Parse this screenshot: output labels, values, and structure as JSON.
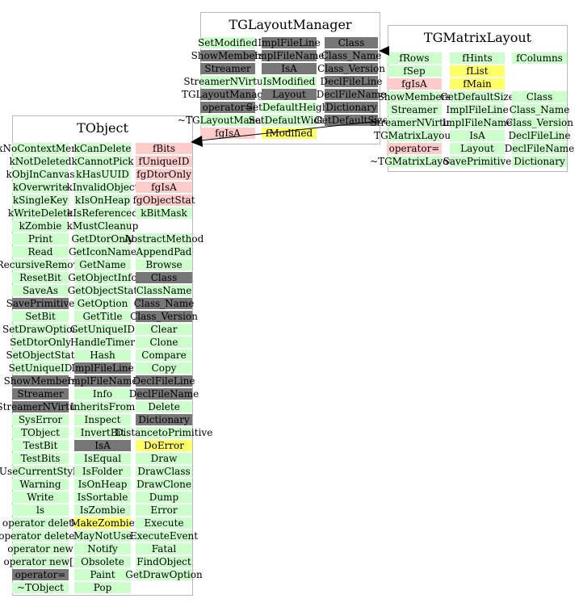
{
  "colors": {
    "green": "#ccffcc",
    "dark": "#777777",
    "pink": "#ffcccc",
    "yellow": "#ffff66",
    "border": "#b8b8b8"
  },
  "classes": [
    {
      "id": "tobject",
      "title": "TObject",
      "columns": [
        [
          [
            "kNoContextMenu",
            "green"
          ],
          [
            "kNotDeleted",
            "green"
          ],
          [
            "kObjInCanvas",
            "green"
          ],
          [
            "kOverwrite",
            "green"
          ],
          [
            "kSingleKey",
            "green"
          ],
          [
            "kWriteDelete",
            "green"
          ],
          [
            "kZombie",
            "green"
          ],
          [
            "Print",
            "green"
          ],
          [
            "Read",
            "green"
          ],
          [
            "RecursiveRemove",
            "green"
          ],
          [
            "ResetBit",
            "green"
          ],
          [
            "SaveAs",
            "green"
          ],
          [
            "SavePrimitive",
            "dark"
          ],
          [
            "SetBit",
            "green"
          ],
          [
            "SetDrawOption",
            "green"
          ],
          [
            "SetDtorOnly",
            "green"
          ],
          [
            "SetObjectStat",
            "green"
          ],
          [
            "SetUniqueID",
            "green"
          ],
          [
            "ShowMembers",
            "dark"
          ],
          [
            "Streamer",
            "dark"
          ],
          [
            "StreamerNVirtual",
            "dark"
          ],
          [
            "SysError",
            "green"
          ],
          [
            "TObject",
            "green"
          ],
          [
            "TestBit",
            "green"
          ],
          [
            "TestBits",
            "green"
          ],
          [
            "UseCurrentStyle",
            "green"
          ],
          [
            "Warning",
            "green"
          ],
          [
            "Write",
            "green"
          ],
          [
            "ls",
            "green"
          ],
          [
            "operator delete",
            "green"
          ],
          [
            "operator delete[]",
            "green"
          ],
          [
            "operator new",
            "green"
          ],
          [
            "operator new[]",
            "green"
          ],
          [
            "operator=",
            "dark"
          ],
          [
            "~TObject",
            "green"
          ]
        ],
        [
          [
            "kCanDelete",
            "green"
          ],
          [
            "kCannotPick",
            "green"
          ],
          [
            "kHasUUID",
            "green"
          ],
          [
            "kInvalidObject",
            "green"
          ],
          [
            "kIsOnHeap",
            "green"
          ],
          [
            "kIsReferenced",
            "green"
          ],
          [
            "kMustCleanup",
            "green"
          ],
          [
            "GetDtorOnly",
            "green"
          ],
          [
            "GetIconName",
            "green"
          ],
          [
            "GetName",
            "green"
          ],
          [
            "GetObjectInfo",
            "green"
          ],
          [
            "GetObjectStat",
            "green"
          ],
          [
            "GetOption",
            "green"
          ],
          [
            "GetTitle",
            "green"
          ],
          [
            "GetUniqueID",
            "green"
          ],
          [
            "HandleTimer",
            "green"
          ],
          [
            "Hash",
            "green"
          ],
          [
            "ImplFileLine",
            "dark"
          ],
          [
            "ImplFileName",
            "dark"
          ],
          [
            "Info",
            "green"
          ],
          [
            "InheritsFrom",
            "green"
          ],
          [
            "Inspect",
            "green"
          ],
          [
            "InvertBit",
            "green"
          ],
          [
            "IsA",
            "dark"
          ],
          [
            "IsEqual",
            "green"
          ],
          [
            "IsFolder",
            "green"
          ],
          [
            "IsOnHeap",
            "green"
          ],
          [
            "IsSortable",
            "green"
          ],
          [
            "IsZombie",
            "green"
          ],
          [
            "MakeZombie",
            "yellow"
          ],
          [
            "MayNotUse",
            "green"
          ],
          [
            "Notify",
            "green"
          ],
          [
            "Obsolete",
            "green"
          ],
          [
            "Paint",
            "green"
          ],
          [
            "Pop",
            "green"
          ]
        ],
        [
          [
            "fBits",
            "pink"
          ],
          [
            "fUniqueID",
            "pink"
          ],
          [
            "fgDtorOnly",
            "pink"
          ],
          [
            "fgIsA",
            "pink"
          ],
          [
            "fgObjectStat",
            "pink"
          ],
          [
            "kBitMask",
            "green"
          ],
          [
            "",
            "none"
          ],
          [
            "AbstractMethod",
            "green"
          ],
          [
            "AppendPad",
            "green"
          ],
          [
            "Browse",
            "green"
          ],
          [
            "Class",
            "dark"
          ],
          [
            "ClassName",
            "green"
          ],
          [
            "Class_Name",
            "dark"
          ],
          [
            "Class_Version",
            "dark"
          ],
          [
            "Clear",
            "green"
          ],
          [
            "Clone",
            "green"
          ],
          [
            "Compare",
            "green"
          ],
          [
            "Copy",
            "green"
          ],
          [
            "DeclFileLine",
            "dark"
          ],
          [
            "DeclFileName",
            "dark"
          ],
          [
            "Delete",
            "green"
          ],
          [
            "Dictionary",
            "dark"
          ],
          [
            "DistancetoPrimitive",
            "green"
          ],
          [
            "DoError",
            "yellow"
          ],
          [
            "Draw",
            "green"
          ],
          [
            "DrawClass",
            "green"
          ],
          [
            "DrawClone",
            "green"
          ],
          [
            "Dump",
            "green"
          ],
          [
            "Error",
            "green"
          ],
          [
            "Execute",
            "green"
          ],
          [
            "ExecuteEvent",
            "green"
          ],
          [
            "Fatal",
            "green"
          ],
          [
            "FindObject",
            "green"
          ],
          [
            "GetDrawOption",
            "green"
          ]
        ]
      ]
    },
    {
      "id": "tglayoutmanager",
      "title": "TGLayoutManager",
      "columns": [
        [
          [
            "SetModified",
            "green"
          ],
          [
            "ShowMembers",
            "dark"
          ],
          [
            "Streamer",
            "dark"
          ],
          [
            "StreamerNVirtual",
            "green"
          ],
          [
            "TGLayoutManager",
            "dark"
          ],
          [
            "operator=",
            "dark"
          ],
          [
            "~TGLayoutManager",
            "green"
          ],
          [
            "fgIsA",
            "pink"
          ]
        ],
        [
          [
            "ImplFileLine",
            "dark"
          ],
          [
            "ImplFileName",
            "dark"
          ],
          [
            "IsA",
            "dark"
          ],
          [
            "IsModified",
            "green"
          ],
          [
            "Layout",
            "dark"
          ],
          [
            "SetDefaultHeight",
            "green"
          ],
          [
            "SetDefaultWidth",
            "green"
          ],
          [
            "fModified",
            "yellow"
          ]
        ],
        [
          [
            "Class",
            "dark"
          ],
          [
            "Class_Name",
            "dark"
          ],
          [
            "Class_Version",
            "dark"
          ],
          [
            "DeclFileLine",
            "dark"
          ],
          [
            "DeclFileName",
            "dark"
          ],
          [
            "Dictionary",
            "dark"
          ],
          [
            "GetDefaultSize",
            "dark"
          ]
        ]
      ]
    },
    {
      "id": "tgmatrixlayout",
      "title": "TGMatrixLayout",
      "columns": [
        [
          [
            "fRows",
            "green"
          ],
          [
            "fSep",
            "green"
          ],
          [
            "fgIsA",
            "pink"
          ],
          [
            "ShowMembers",
            "green"
          ],
          [
            "Streamer",
            "green"
          ],
          [
            "StreamerNVirtual",
            "green"
          ],
          [
            "TGMatrixLayout",
            "green"
          ],
          [
            "operator=",
            "pink"
          ],
          [
            "~TGMatrixLayout",
            "green"
          ]
        ],
        [
          [
            "fHints",
            "green"
          ],
          [
            "fList",
            "yellow"
          ],
          [
            "fMain",
            "yellow"
          ],
          [
            "GetDefaultSize",
            "green"
          ],
          [
            "ImplFileLine",
            "green"
          ],
          [
            "ImplFileName",
            "green"
          ],
          [
            "IsA",
            "green"
          ],
          [
            "Layout",
            "green"
          ],
          [
            "SavePrimitive",
            "green"
          ]
        ],
        [
          [
            "fColumns",
            "green"
          ],
          [
            "",
            "none"
          ],
          [
            "",
            "none"
          ],
          [
            "Class",
            "green"
          ],
          [
            "Class_Name",
            "green"
          ],
          [
            "Class_Version",
            "green"
          ],
          [
            "DeclFileLine",
            "green"
          ],
          [
            "DeclFileName",
            "green"
          ],
          [
            "Dictionary",
            "green"
          ]
        ]
      ]
    }
  ]
}
